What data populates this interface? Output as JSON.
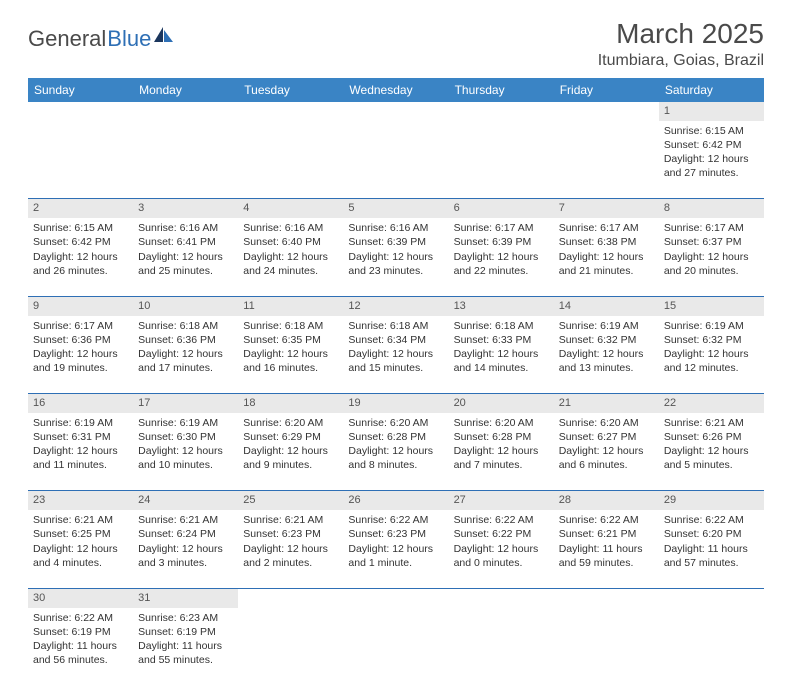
{
  "logo": {
    "text1": "General",
    "text2": "Blue"
  },
  "title": "March 2025",
  "location": "Itumbiara, Goias, Brazil",
  "colors": {
    "header_bg": "#3a84c5",
    "header_text": "#ffffff",
    "border": "#2e6fb5",
    "daynum_bg": "#e9e9e9",
    "body_text": "#333333"
  },
  "weekdays": [
    "Sunday",
    "Monday",
    "Tuesday",
    "Wednesday",
    "Thursday",
    "Friday",
    "Saturday"
  ],
  "weeks": [
    [
      null,
      null,
      null,
      null,
      null,
      null,
      {
        "n": "1",
        "sr": "Sunrise: 6:15 AM",
        "ss": "Sunset: 6:42 PM",
        "dl1": "Daylight: 12 hours",
        "dl2": "and 27 minutes."
      }
    ],
    [
      {
        "n": "2",
        "sr": "Sunrise: 6:15 AM",
        "ss": "Sunset: 6:42 PM",
        "dl1": "Daylight: 12 hours",
        "dl2": "and 26 minutes."
      },
      {
        "n": "3",
        "sr": "Sunrise: 6:16 AM",
        "ss": "Sunset: 6:41 PM",
        "dl1": "Daylight: 12 hours",
        "dl2": "and 25 minutes."
      },
      {
        "n": "4",
        "sr": "Sunrise: 6:16 AM",
        "ss": "Sunset: 6:40 PM",
        "dl1": "Daylight: 12 hours",
        "dl2": "and 24 minutes."
      },
      {
        "n": "5",
        "sr": "Sunrise: 6:16 AM",
        "ss": "Sunset: 6:39 PM",
        "dl1": "Daylight: 12 hours",
        "dl2": "and 23 minutes."
      },
      {
        "n": "6",
        "sr": "Sunrise: 6:17 AM",
        "ss": "Sunset: 6:39 PM",
        "dl1": "Daylight: 12 hours",
        "dl2": "and 22 minutes."
      },
      {
        "n": "7",
        "sr": "Sunrise: 6:17 AM",
        "ss": "Sunset: 6:38 PM",
        "dl1": "Daylight: 12 hours",
        "dl2": "and 21 minutes."
      },
      {
        "n": "8",
        "sr": "Sunrise: 6:17 AM",
        "ss": "Sunset: 6:37 PM",
        "dl1": "Daylight: 12 hours",
        "dl2": "and 20 minutes."
      }
    ],
    [
      {
        "n": "9",
        "sr": "Sunrise: 6:17 AM",
        "ss": "Sunset: 6:36 PM",
        "dl1": "Daylight: 12 hours",
        "dl2": "and 19 minutes."
      },
      {
        "n": "10",
        "sr": "Sunrise: 6:18 AM",
        "ss": "Sunset: 6:36 PM",
        "dl1": "Daylight: 12 hours",
        "dl2": "and 17 minutes."
      },
      {
        "n": "11",
        "sr": "Sunrise: 6:18 AM",
        "ss": "Sunset: 6:35 PM",
        "dl1": "Daylight: 12 hours",
        "dl2": "and 16 minutes."
      },
      {
        "n": "12",
        "sr": "Sunrise: 6:18 AM",
        "ss": "Sunset: 6:34 PM",
        "dl1": "Daylight: 12 hours",
        "dl2": "and 15 minutes."
      },
      {
        "n": "13",
        "sr": "Sunrise: 6:18 AM",
        "ss": "Sunset: 6:33 PM",
        "dl1": "Daylight: 12 hours",
        "dl2": "and 14 minutes."
      },
      {
        "n": "14",
        "sr": "Sunrise: 6:19 AM",
        "ss": "Sunset: 6:32 PM",
        "dl1": "Daylight: 12 hours",
        "dl2": "and 13 minutes."
      },
      {
        "n": "15",
        "sr": "Sunrise: 6:19 AM",
        "ss": "Sunset: 6:32 PM",
        "dl1": "Daylight: 12 hours",
        "dl2": "and 12 minutes."
      }
    ],
    [
      {
        "n": "16",
        "sr": "Sunrise: 6:19 AM",
        "ss": "Sunset: 6:31 PM",
        "dl1": "Daylight: 12 hours",
        "dl2": "and 11 minutes."
      },
      {
        "n": "17",
        "sr": "Sunrise: 6:19 AM",
        "ss": "Sunset: 6:30 PM",
        "dl1": "Daylight: 12 hours",
        "dl2": "and 10 minutes."
      },
      {
        "n": "18",
        "sr": "Sunrise: 6:20 AM",
        "ss": "Sunset: 6:29 PM",
        "dl1": "Daylight: 12 hours",
        "dl2": "and 9 minutes."
      },
      {
        "n": "19",
        "sr": "Sunrise: 6:20 AM",
        "ss": "Sunset: 6:28 PM",
        "dl1": "Daylight: 12 hours",
        "dl2": "and 8 minutes."
      },
      {
        "n": "20",
        "sr": "Sunrise: 6:20 AM",
        "ss": "Sunset: 6:28 PM",
        "dl1": "Daylight: 12 hours",
        "dl2": "and 7 minutes."
      },
      {
        "n": "21",
        "sr": "Sunrise: 6:20 AM",
        "ss": "Sunset: 6:27 PM",
        "dl1": "Daylight: 12 hours",
        "dl2": "and 6 minutes."
      },
      {
        "n": "22",
        "sr": "Sunrise: 6:21 AM",
        "ss": "Sunset: 6:26 PM",
        "dl1": "Daylight: 12 hours",
        "dl2": "and 5 minutes."
      }
    ],
    [
      {
        "n": "23",
        "sr": "Sunrise: 6:21 AM",
        "ss": "Sunset: 6:25 PM",
        "dl1": "Daylight: 12 hours",
        "dl2": "and 4 minutes."
      },
      {
        "n": "24",
        "sr": "Sunrise: 6:21 AM",
        "ss": "Sunset: 6:24 PM",
        "dl1": "Daylight: 12 hours",
        "dl2": "and 3 minutes."
      },
      {
        "n": "25",
        "sr": "Sunrise: 6:21 AM",
        "ss": "Sunset: 6:23 PM",
        "dl1": "Daylight: 12 hours",
        "dl2": "and 2 minutes."
      },
      {
        "n": "26",
        "sr": "Sunrise: 6:22 AM",
        "ss": "Sunset: 6:23 PM",
        "dl1": "Daylight: 12 hours",
        "dl2": "and 1 minute."
      },
      {
        "n": "27",
        "sr": "Sunrise: 6:22 AM",
        "ss": "Sunset: 6:22 PM",
        "dl1": "Daylight: 12 hours",
        "dl2": "and 0 minutes."
      },
      {
        "n": "28",
        "sr": "Sunrise: 6:22 AM",
        "ss": "Sunset: 6:21 PM",
        "dl1": "Daylight: 11 hours",
        "dl2": "and 59 minutes."
      },
      {
        "n": "29",
        "sr": "Sunrise: 6:22 AM",
        "ss": "Sunset: 6:20 PM",
        "dl1": "Daylight: 11 hours",
        "dl2": "and 57 minutes."
      }
    ],
    [
      {
        "n": "30",
        "sr": "Sunrise: 6:22 AM",
        "ss": "Sunset: 6:19 PM",
        "dl1": "Daylight: 11 hours",
        "dl2": "and 56 minutes."
      },
      {
        "n": "31",
        "sr": "Sunrise: 6:23 AM",
        "ss": "Sunset: 6:19 PM",
        "dl1": "Daylight: 11 hours",
        "dl2": "and 55 minutes."
      },
      null,
      null,
      null,
      null,
      null
    ]
  ]
}
